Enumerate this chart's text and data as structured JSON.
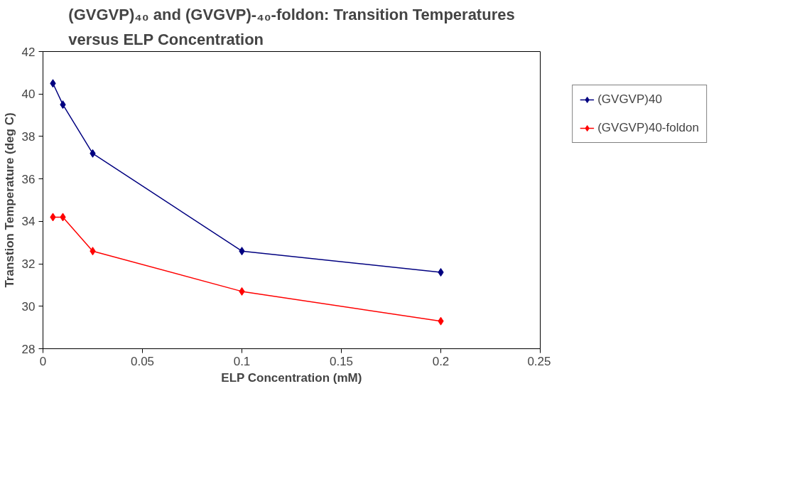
{
  "chart_data": {
    "type": "line",
    "title": "(GVGVP)₄₀ and (GVGVP)-₄₀-foldon: Transition Temperatures versus ELP Concentration",
    "xlabel": "ELP Concentration (mM)",
    "ylabel": "Transtion Temperature (deg C)",
    "x": [
      0.005,
      0.01,
      0.025,
      0.1,
      0.2
    ],
    "series": [
      {
        "name": "(GVGVP)40",
        "color": "#000080",
        "values": [
          40.5,
          39.5,
          37.2,
          32.6,
          31.6
        ]
      },
      {
        "name": "(GVGVP)40-foldon",
        "color": "#ff0000",
        "values": [
          34.2,
          34.2,
          32.6,
          30.7,
          29.3
        ]
      }
    ],
    "xlim": [
      0,
      0.25
    ],
    "xticks": [
      0,
      0.05,
      0.1,
      0.15,
      0.2,
      0.25
    ],
    "ylim": [
      28,
      42
    ],
    "yticks": [
      28,
      30,
      32,
      34,
      36,
      38,
      40,
      42
    ],
    "grid": false,
    "legend": "right",
    "marker": "diamond",
    "line_style": "solid"
  }
}
